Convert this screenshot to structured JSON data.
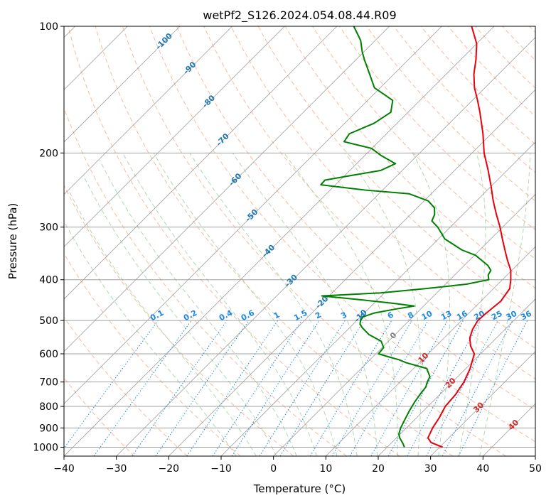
{
  "chart_data": {
    "type": "skew-t",
    "title": "wetPf2_S126.2024.054.08.44.R09",
    "xlabel": "Temperature (°C)",
    "ylabel": "Pressure (hPa)",
    "xlim": [
      -40,
      50
    ],
    "ylim": [
      1050,
      100
    ],
    "y_scale": "log",
    "grid": true,
    "x_ticks": [
      -40,
      -30,
      -20,
      -10,
      0,
      10,
      20,
      30,
      40,
      50
    ],
    "x_tick_labels": [
      "−40",
      "−30",
      "−20",
      "−10",
      "0",
      "10",
      "20",
      "30",
      "40",
      "50"
    ],
    "y_ticks": [
      100,
      200,
      300,
      400,
      500,
      600,
      700,
      800,
      900,
      1000
    ],
    "y_tick_labels": [
      "100",
      "200",
      "300",
      "400",
      "500",
      "600",
      "700",
      "800",
      "900",
      "1000"
    ],
    "isotherm_labels": [
      "-100",
      "-90",
      "-80",
      "-70",
      "-60",
      "-50",
      "-40",
      "-30",
      "-20",
      "-10",
      "0",
      "10",
      "20",
      "30",
      "40"
    ],
    "mixing_ratio_labels": [
      "0.1",
      "0.2",
      "0.4",
      "0.6",
      "1",
      "1.5",
      "2",
      "3",
      "4",
      "6",
      "8",
      "10",
      "13",
      "16",
      "20",
      "25",
      "30",
      "36"
    ],
    "colors": {
      "temperature": "#e8000b",
      "dewpoint": "#008000",
      "isotherm": "#808080",
      "dry_adiabat": "#f4a582",
      "moist_adiabat": "#8fc98f",
      "mixing_ratio": "#1e88e5",
      "isotherm_label_cold": "#1f77b4",
      "isotherm_label_warm": "#d62728",
      "isotherm_label_zero": "#808080"
    },
    "series": [
      {
        "name": "Temperature",
        "points": [
          [
            1000,
            30.6
          ],
          [
            975,
            27.5
          ],
          [
            950,
            26.0
          ],
          [
            900,
            25.0
          ],
          [
            850,
            24.3
          ],
          [
            800,
            23.3
          ],
          [
            750,
            23.0
          ],
          [
            700,
            22.2
          ],
          [
            650,
            20.8
          ],
          [
            600,
            18.8
          ],
          [
            575,
            16.6
          ],
          [
            550,
            14.9
          ],
          [
            525,
            13.8
          ],
          [
            500,
            13.1
          ],
          [
            480,
            13.3
          ],
          [
            450,
            13.8
          ],
          [
            420,
            13.1
          ],
          [
            400,
            11.6
          ],
          [
            380,
            9.8
          ],
          [
            360,
            7.3
          ],
          [
            340,
            4.8
          ],
          [
            320,
            2.2
          ],
          [
            300,
            -0.5
          ],
          [
            280,
            -3.6
          ],
          [
            260,
            -6.8
          ],
          [
            240,
            -10.0
          ],
          [
            220,
            -13.6
          ],
          [
            200,
            -17.7
          ],
          [
            180,
            -21.6
          ],
          [
            160,
            -26.3
          ],
          [
            150,
            -29.0
          ],
          [
            140,
            -32.0
          ],
          [
            130,
            -34.7
          ],
          [
            120,
            -37.1
          ],
          [
            110,
            -40.0
          ],
          [
            100,
            -44.3
          ]
        ]
      },
      {
        "name": "Dewpoint",
        "points": [
          [
            1000,
            23.3
          ],
          [
            980,
            22.3
          ],
          [
            950,
            20.6
          ],
          [
            930,
            19.7
          ],
          [
            900,
            18.9
          ],
          [
            860,
            18.1
          ],
          [
            820,
            17.3
          ],
          [
            780,
            16.6
          ],
          [
            750,
            16.2
          ],
          [
            720,
            15.9
          ],
          [
            700,
            15.2
          ],
          [
            680,
            14.7
          ],
          [
            650,
            12.5
          ],
          [
            640,
            10.0
          ],
          [
            630,
            7.5
          ],
          [
            620,
            5.6
          ],
          [
            610,
            3.0
          ],
          [
            600,
            0.5
          ],
          [
            580,
            0.3
          ],
          [
            560,
            -1.4
          ],
          [
            540,
            -5.0
          ],
          [
            520,
            -7.6
          ],
          [
            510,
            -8.7
          ],
          [
            500,
            -9.3
          ],
          [
            490,
            -9.5
          ],
          [
            480,
            -8.1
          ],
          [
            470,
            -4.9
          ],
          [
            462,
            -1.8
          ],
          [
            455,
            -6.4
          ],
          [
            445,
            -14.4
          ],
          [
            437,
            -21.4
          ],
          [
            430,
            -10.7
          ],
          [
            420,
            -3.0
          ],
          [
            410,
            4.0
          ],
          [
            400,
            7.4
          ],
          [
            390,
            6.4
          ],
          [
            380,
            6.0
          ],
          [
            370,
            4.5
          ],
          [
            350,
            0.2
          ],
          [
            340,
            -3.4
          ],
          [
            320,
            -8.8
          ],
          [
            300,
            -12.4
          ],
          [
            290,
            -14.7
          ],
          [
            280,
            -15.4
          ],
          [
            270,
            -16.7
          ],
          [
            260,
            -19.2
          ],
          [
            250,
            -24.2
          ],
          [
            245,
            -33.3
          ],
          [
            238,
            -42.8
          ],
          [
            232,
            -42.9
          ],
          [
            226,
            -38.6
          ],
          [
            220,
            -34.1
          ],
          [
            212,
            -32.6
          ],
          [
            203,
            -36.8
          ],
          [
            195,
            -40.1
          ],
          [
            188,
            -46.6
          ],
          [
            180,
            -47.1
          ],
          [
            170,
            -44.4
          ],
          [
            160,
            -43.3
          ],
          [
            150,
            -45.2
          ],
          [
            145,
            -48.1
          ],
          [
            140,
            -51.1
          ],
          [
            130,
            -54.6
          ],
          [
            120,
            -58.4
          ],
          [
            115,
            -60.3
          ],
          [
            108,
            -62.8
          ],
          [
            100,
            -66.8
          ]
        ]
      }
    ]
  }
}
